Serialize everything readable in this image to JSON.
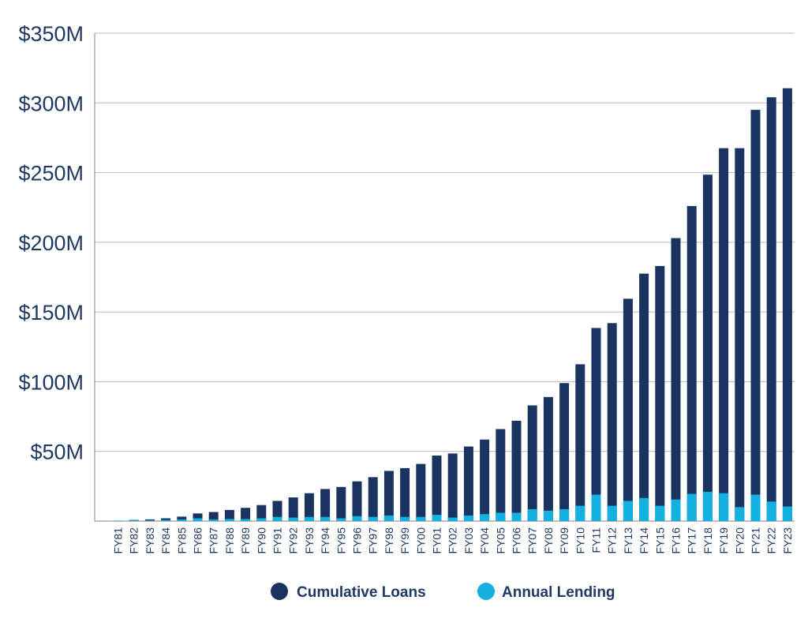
{
  "colors": {
    "cumulative": "#1b3360",
    "annual": "#14b1e0",
    "text": "#1f3864",
    "grid": "#b8b8b8"
  },
  "legend": {
    "cumulative_label": "Cumulative Loans",
    "annual_label": "Annual Lending"
  },
  "chart_data": {
    "type": "bar",
    "stacked": false,
    "overlaid": true,
    "categories": [
      "FY81",
      "FY82",
      "FY83",
      "FY84",
      "FY85",
      "FY86",
      "FY87",
      "FY88",
      "FY89",
      "FY90",
      "FY91",
      "FY92",
      "FY93",
      "FY94",
      "FY95",
      "FY96",
      "FY97",
      "FY98",
      "FY99",
      "FY00",
      "FY01",
      "FY02",
      "FY03",
      "FY04",
      "FY05",
      "FY06",
      "FY07",
      "FY08",
      "FY09",
      "FY10",
      "FY11",
      "FY12",
      "FY13",
      "FY14",
      "FY15",
      "FY16",
      "FY17",
      "FY18",
      "FY19",
      "FY20",
      "FY21",
      "FY22",
      "FY23"
    ],
    "series": [
      {
        "name": "Cumulative Loans",
        "values": [
          0.3,
          0.8,
          1.2,
          2.0,
          3.2,
          5.5,
          6.5,
          8.0,
          9.5,
          11.5,
          14.5,
          17.0,
          20.0,
          23.0,
          24.5,
          28.5,
          31.5,
          36.0,
          38.0,
          41.0,
          47.0,
          48.5,
          53.5,
          58.5,
          66.0,
          72.0,
          83.0,
          89.0,
          99.0,
          112.5,
          138.5,
          142.0,
          159.5,
          177.5,
          183.0,
          203.0,
          226.0,
          248.5,
          267.5,
          267.5,
          295.0,
          304.0,
          310.5
        ]
      },
      {
        "name": "Annual Lending",
        "values": [
          0.3,
          0.5,
          0.5,
          0.8,
          1.2,
          2.0,
          1.2,
          1.5,
          1.5,
          2.0,
          3.0,
          2.5,
          3.0,
          3.0,
          2.0,
          3.5,
          3.0,
          4.0,
          3.0,
          3.0,
          4.5,
          2.5,
          4.0,
          5.0,
          6.0,
          6.0,
          8.5,
          7.5,
          8.5,
          11.0,
          19.0,
          11.0,
          14.5,
          16.5,
          11.0,
          15.5,
          19.5,
          21.0,
          20.0,
          10.0,
          19.0,
          14.0,
          10.5
        ]
      }
    ],
    "yticks": [
      "$50M",
      "$100M",
      "$150M",
      "$200M",
      "$250M",
      "$300M",
      "$350M"
    ],
    "ylim": [
      0,
      350
    ],
    "grid": true,
    "legend_position": "bottom-center"
  }
}
